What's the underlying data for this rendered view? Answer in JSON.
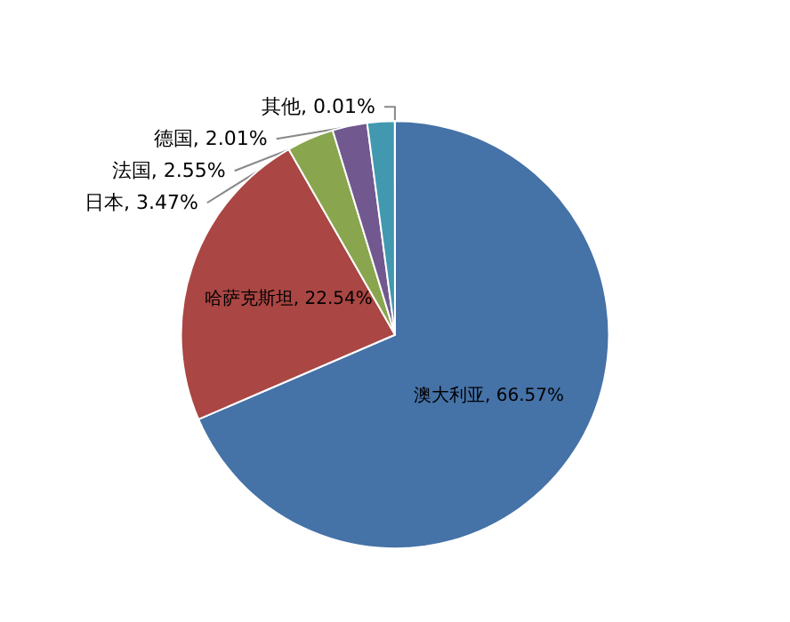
{
  "chart_data": {
    "type": "pie",
    "categories": [
      "澳大利亚",
      "哈萨克斯坦",
      "日本",
      "法国",
      "德国",
      "其他"
    ],
    "values": [
      66.57,
      22.54,
      3.47,
      2.55,
      2.01,
      0.01
    ],
    "value_labels": [
      "66.57%",
      "22.54%",
      "3.47%",
      "2.55%",
      "2.01%",
      "0.01%"
    ],
    "colors": [
      "#4572a7",
      "#aa4643",
      "#89a54e",
      "#71588f",
      "#4198af",
      "#db843d"
    ],
    "legend": false
  }
}
